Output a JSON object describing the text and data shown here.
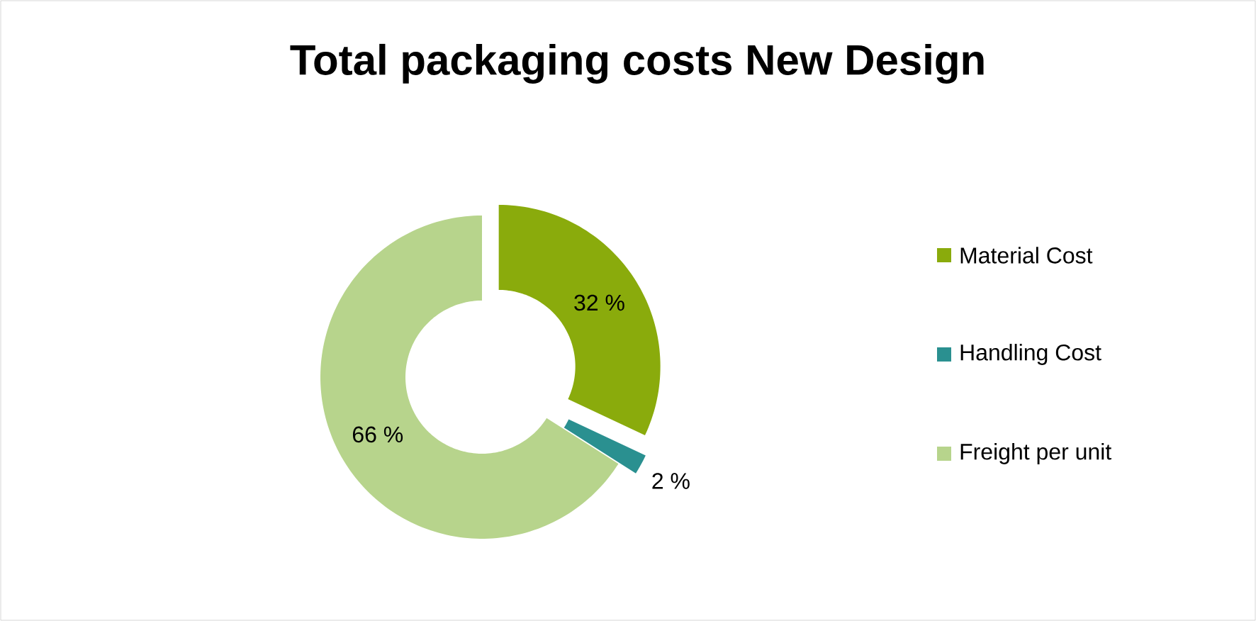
{
  "chart_data": {
    "type": "donut",
    "title": "Total packaging costs New Design",
    "categories": [
      "Material Cost",
      "Handling Cost",
      "Freight per unit"
    ],
    "values": [
      32,
      2,
      66
    ],
    "colors": [
      "#8aab0c",
      "#2a9090",
      "#b7d48c"
    ],
    "value_labels": [
      "32 %",
      "2 %",
      "66 %"
    ],
    "legend": "right"
  }
}
